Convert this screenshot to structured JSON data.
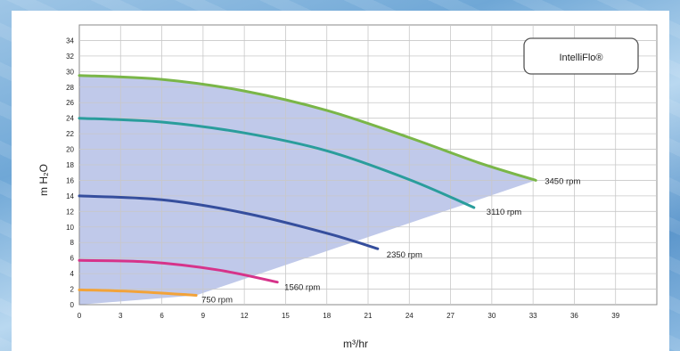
{
  "chart_data": {
    "type": "line",
    "title": "",
    "xlabel": "m³/hr",
    "ylabel": "m H₂O",
    "xlim": [
      0,
      42
    ],
    "ylim": [
      0,
      36
    ],
    "xticks": [
      0,
      3,
      6,
      9,
      12,
      15,
      18,
      21,
      24,
      27,
      30,
      33,
      36,
      39
    ],
    "yticks": [
      0,
      2,
      4,
      6,
      8,
      10,
      12,
      14,
      16,
      18,
      20,
      22,
      24,
      26,
      28,
      30,
      32,
      34
    ],
    "grid": true,
    "legend": {
      "text": "IntelliFlo®",
      "placement": "top-right"
    },
    "operating_region": {
      "color": "#b5bfe6"
    },
    "series": [
      {
        "name": "3450 rpm",
        "color": "#7ab648",
        "x": [
          0,
          6,
          12,
          18,
          24,
          29,
          33.2
        ],
        "y": [
          29.5,
          29.0,
          27.5,
          25.0,
          21.5,
          18.3,
          16.0
        ]
      },
      {
        "name": "3110 rpm",
        "color": "#2a9d9c",
        "x": [
          0,
          6,
          12,
          18,
          24,
          28.7
        ],
        "y": [
          24.0,
          23.5,
          22.1,
          19.8,
          16.1,
          12.5
        ]
      },
      {
        "name": "2350 rpm",
        "color": "#354e9d",
        "x": [
          0,
          6,
          12,
          18,
          21.7
        ],
        "y": [
          14.0,
          13.5,
          11.8,
          9.2,
          7.2
        ]
      },
      {
        "name": "1560 rpm",
        "color": "#d6338a",
        "x": [
          0,
          5,
          10,
          14.4
        ],
        "y": [
          5.7,
          5.5,
          4.5,
          2.9
        ]
      },
      {
        "name": "750 rpm",
        "color": "#f2a33a",
        "x": [
          0,
          4,
          8.5
        ],
        "y": [
          1.9,
          1.7,
          1.2
        ]
      }
    ]
  }
}
